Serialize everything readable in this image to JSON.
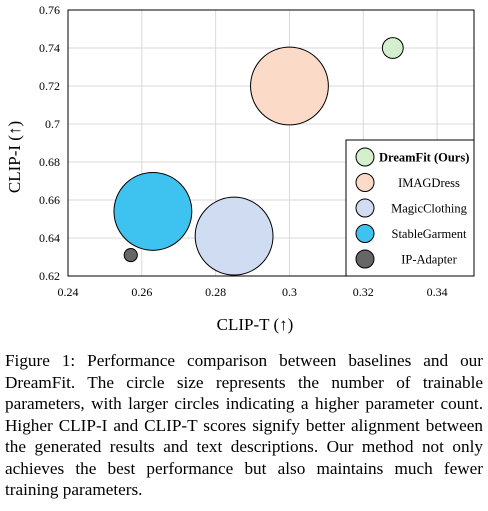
{
  "chart_data": {
    "type": "scatter",
    "xlabel": "CLIP-T (↑)",
    "ylabel": "CLIP-I (↑)",
    "xlim": [
      0.24,
      0.35
    ],
    "ylim": [
      0.62,
      0.76
    ],
    "x_ticks": [
      "0.24",
      "0.26",
      "0.28",
      "0.3",
      "0.32",
      "0.34"
    ],
    "y_ticks": [
      "0.62",
      "0.64",
      "0.66",
      "0.68",
      "0.7",
      "0.72",
      "0.74",
      "0.76"
    ],
    "legend_position": "bottom-right",
    "series": [
      {
        "name": "DreamFit (Ours)",
        "x": 0.328,
        "y": 0.74,
        "size": 1,
        "color": "#d4efcd",
        "bold": true
      },
      {
        "name": "IMAGDress",
        "x": 0.3,
        "y": 0.72,
        "size": 14,
        "color": "#fbdac8",
        "bold": false
      },
      {
        "name": "MagicClothing",
        "x": 0.285,
        "y": 0.641,
        "size": 14,
        "color": "#cfdcf1",
        "bold": false
      },
      {
        "name": "StableGarment",
        "x": 0.263,
        "y": 0.654,
        "size": 14,
        "color": "#3ec2ef",
        "bold": false
      },
      {
        "name": "IP-Adapter",
        "x": 0.257,
        "y": 0.631,
        "size": 0.4,
        "color": "#666666",
        "bold": false
      }
    ]
  },
  "caption": "Figure 1: Performance comparison between baselines and our DreamFit. The circle size represents the number of trainable parameters, with larger circles indicating a higher parameter count. Higher CLIP-I and CLIP-T scores signify better alignment between the generated results and text descriptions. Our method not only achieves the best performance but also maintains much fewer training parameters."
}
